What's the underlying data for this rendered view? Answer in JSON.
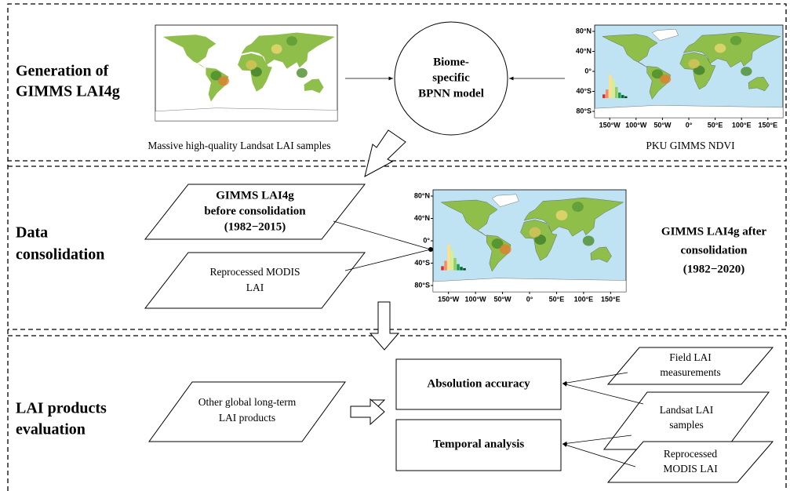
{
  "sections": [
    {
      "label": [
        "Generation of",
        "GIMMS LAI4g"
      ]
    },
    {
      "label": [
        "Data",
        "consolidation"
      ]
    },
    {
      "label": [
        "LAI products",
        "evaluation"
      ]
    }
  ],
  "nodes": {
    "landsat_caption": "Massive high-quality Landsat LAI samples",
    "bpnn": [
      "Biome-",
      "specific",
      "BPNN model"
    ],
    "ndvi_caption": "PKU GIMMS NDVI",
    "before": [
      "GIMMS LAI4g",
      "before consolidation",
      "(1982−2015)"
    ],
    "modis": [
      "Reprocessed MODIS",
      "LAI"
    ],
    "after": [
      "GIMMS LAI4g after",
      "consolidation",
      "(1982−2020)"
    ],
    "other": [
      "Other global long-term",
      "LAI products"
    ],
    "accuracy": "Absolution accuracy",
    "temporal": "Temporal analysis",
    "field": [
      "Field LAI",
      "measurements"
    ],
    "landsat": [
      "Landsat LAI",
      "samples"
    ],
    "modis2": [
      "Reprocessed",
      "MODIS LAI"
    ]
  },
  "maps": [
    {
      "lat_labels": [
        "80°N",
        "40°N",
        "0°",
        "40°S",
        "80°S"
      ],
      "lon_labels": [
        "150°W",
        "100°W",
        "50°W",
        "0°",
        "50°E",
        "100°E",
        "150°E"
      ]
    },
    {
      "lat_labels": [
        "80°N",
        "40°N",
        "0°",
        "40°S",
        "80°S"
      ],
      "lon_labels": [
        "150°W",
        "100°W",
        "50°W",
        "0°",
        "50°E",
        "100°E",
        "150°E"
      ]
    }
  ]
}
